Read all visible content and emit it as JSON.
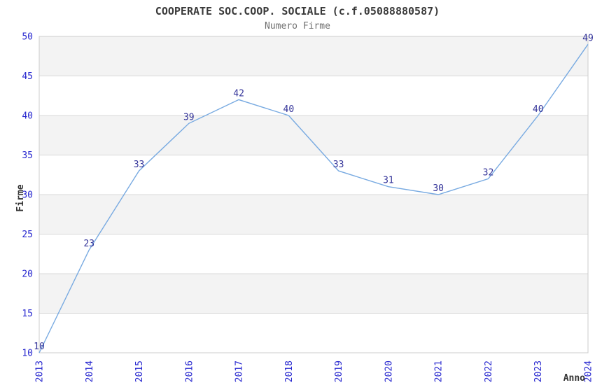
{
  "chart_data": {
    "type": "line",
    "title": "COOPERATE SOC.COOP. SOCIALE (c.f.05088880587)",
    "subtitle": "Numero Firme",
    "xlabel": "Anno",
    "ylabel": "Firme",
    "categories": [
      "2013",
      "2014",
      "2015",
      "2016",
      "2017",
      "2018",
      "2019",
      "2020",
      "2021",
      "2022",
      "2023",
      "2024"
    ],
    "series": [
      {
        "name": "Numero Firme",
        "values": [
          10,
          23,
          33,
          39,
          42,
          40,
          33,
          31,
          30,
          32,
          40,
          49
        ]
      }
    ],
    "ylim": [
      10,
      50
    ],
    "yticks": [
      10,
      15,
      20,
      25,
      30,
      35,
      40,
      45,
      50
    ],
    "xtick_rotation": -90,
    "grid": "horizontal",
    "alternating_bands": true,
    "legend_position": "none",
    "data_labels": true,
    "colors": {
      "line": "#78aae1",
      "band_fill": "#f3f3f3",
      "gridline": "#d8d8d8",
      "plot_border": "#cccccc",
      "tick_label": "#2727cf",
      "data_label": "#333399",
      "title": "#3a3a3a",
      "subtitle": "#707070",
      "axis_title": "#333333",
      "background": "#ffffff"
    }
  }
}
